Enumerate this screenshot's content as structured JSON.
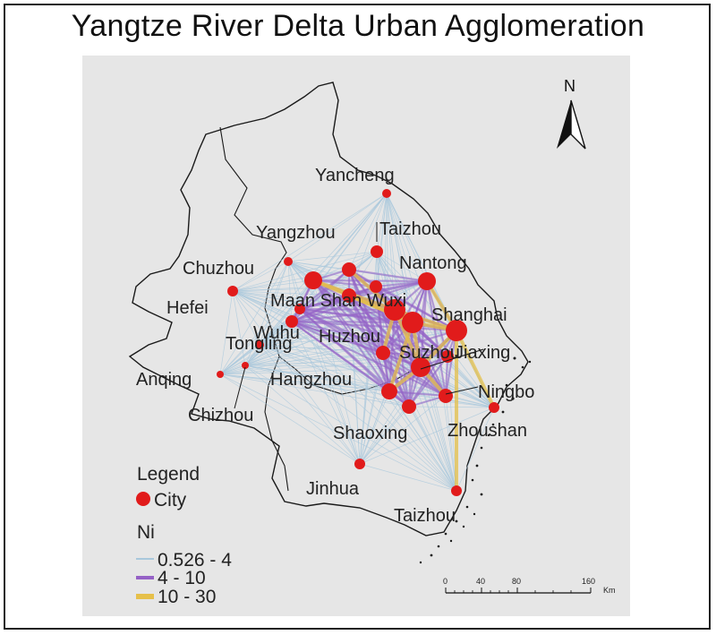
{
  "title": "Yangtze River Delta Urban Agglomeration",
  "north_label": "N",
  "cities": [
    {
      "name": "Yancheng"
    },
    {
      "name": "Taizhou"
    },
    {
      "name": "Yangzhou"
    },
    {
      "name": "Nantong"
    },
    {
      "name": "Chuzhou"
    },
    {
      "name": "Hefei"
    },
    {
      "name": "Maan Shan"
    },
    {
      "name": "Wuxi"
    },
    {
      "name": "Shanghai"
    },
    {
      "name": "Wuhu"
    },
    {
      "name": "Tongling"
    },
    {
      "name": "Huzhou"
    },
    {
      "name": "Suzhou"
    },
    {
      "name": "Jiaxing"
    },
    {
      "name": "Anqing"
    },
    {
      "name": "Hangzhou"
    },
    {
      "name": "Ningbo"
    },
    {
      "name": "Chizhou"
    },
    {
      "name": "Shaoxing"
    },
    {
      "name": "Zhoushan"
    },
    {
      "name": "Jinhua"
    },
    {
      "name": "Taizhou"
    }
  ],
  "legend": {
    "heading": "Legend",
    "city_label": "City",
    "ni_heading": "Ni",
    "classes": [
      {
        "label": "0.526 - 4",
        "color": "#a9c8dc"
      },
      {
        "label": "4 - 10",
        "color": "#9561c6"
      },
      {
        "label": "10 - 30",
        "color": "#e6c04a"
      }
    ]
  },
  "scale_bar": {
    "ticks": [
      "0",
      "40",
      "80",
      "160"
    ],
    "unit": "Km"
  },
  "colors": {
    "city": "#e11b1b",
    "background": "#e6e6e6",
    "boundary": "#1a1a1a"
  }
}
